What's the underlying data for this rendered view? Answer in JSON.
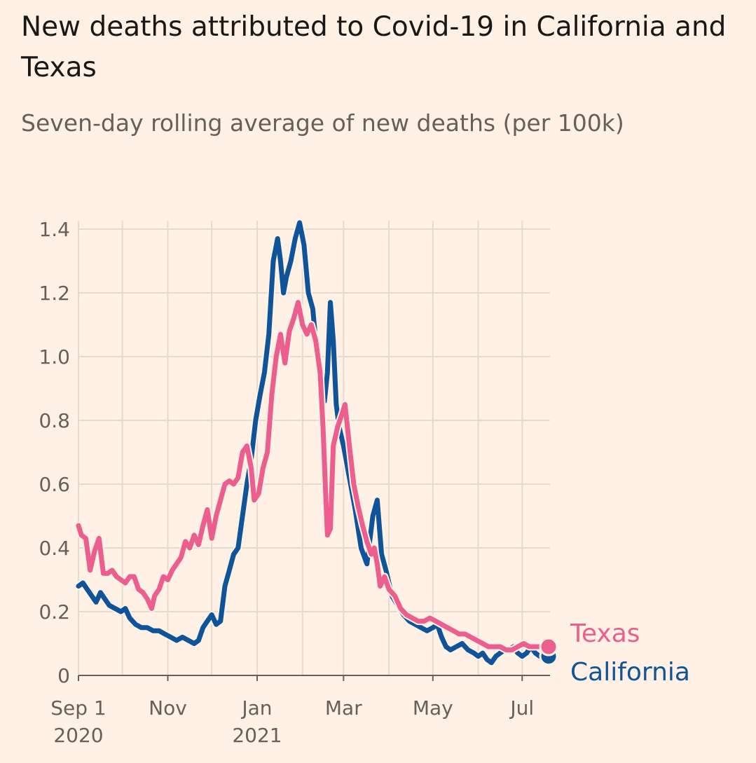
{
  "title": "New deaths attributed to Covid-19 in California and Texas",
  "subtitle": "Seven-day rolling average of new deaths (per 100k)",
  "colors": {
    "background": "#fff1e5",
    "texas": "#eb5e8d",
    "california": "#0f5499",
    "grid": "#e6d9ce",
    "axis": "#66605c"
  },
  "chart_data": {
    "type": "line",
    "title": "New deaths attributed to Covid-19 in California and Texas",
    "subtitle": "Seven-day rolling average of new deaths (per 100k)",
    "ylim": [
      0,
      1.4
    ],
    "yticks": [
      "0",
      "0.2",
      "0.4",
      "0.6",
      "0.8",
      "1.0",
      "1.2",
      "1.4"
    ],
    "ytick_values": [
      0,
      0.2,
      0.4,
      0.6,
      0.8,
      1.0,
      1.2,
      1.4
    ],
    "xlim": [
      "2020-09-01",
      "2021-07-20"
    ],
    "xticks": [
      {
        "date": "2020-09-01",
        "label": "Sep 1",
        "sublabel": "2020"
      },
      {
        "date": "2020-11-01",
        "label": "Nov",
        "sublabel": ""
      },
      {
        "date": "2021-01-01",
        "label": "Jan",
        "sublabel": "2021"
      },
      {
        "date": "2021-03-01",
        "label": "Mar",
        "sublabel": ""
      },
      {
        "date": "2021-05-01",
        "label": "May",
        "sublabel": ""
      },
      {
        "date": "2021-07-01",
        "label": "Jul",
        "sublabel": ""
      }
    ],
    "grid": true,
    "legend": "labels at line ends (right)",
    "series": [
      {
        "name": "California",
        "color": "#0f5499",
        "points": [
          [
            "2020-09-01",
            0.28
          ],
          [
            "2020-09-04",
            0.29
          ],
          [
            "2020-09-07",
            0.27
          ],
          [
            "2020-09-10",
            0.25
          ],
          [
            "2020-09-13",
            0.23
          ],
          [
            "2020-09-16",
            0.26
          ],
          [
            "2020-09-19",
            0.24
          ],
          [
            "2020-09-22",
            0.22
          ],
          [
            "2020-09-26",
            0.21
          ],
          [
            "2020-09-30",
            0.2
          ],
          [
            "2020-10-03",
            0.21
          ],
          [
            "2020-10-06",
            0.18
          ],
          [
            "2020-10-10",
            0.16
          ],
          [
            "2020-10-14",
            0.15
          ],
          [
            "2020-10-18",
            0.15
          ],
          [
            "2020-10-22",
            0.14
          ],
          [
            "2020-10-26",
            0.14
          ],
          [
            "2020-10-30",
            0.13
          ],
          [
            "2020-11-03",
            0.12
          ],
          [
            "2020-11-07",
            0.11
          ],
          [
            "2020-11-11",
            0.12
          ],
          [
            "2020-11-15",
            0.11
          ],
          [
            "2020-11-19",
            0.1
          ],
          [
            "2020-11-22",
            0.11
          ],
          [
            "2020-11-25",
            0.15
          ],
          [
            "2020-11-28",
            0.17
          ],
          [
            "2020-12-01",
            0.19
          ],
          [
            "2020-12-04",
            0.16
          ],
          [
            "2020-12-07",
            0.17
          ],
          [
            "2020-12-10",
            0.28
          ],
          [
            "2020-12-13",
            0.33
          ],
          [
            "2020-12-16",
            0.38
          ],
          [
            "2020-12-19",
            0.4
          ],
          [
            "2020-12-22",
            0.5
          ],
          [
            "2020-12-25",
            0.6
          ],
          [
            "2020-12-28",
            0.68
          ],
          [
            "2020-12-31",
            0.8
          ],
          [
            "2021-01-03",
            0.88
          ],
          [
            "2021-01-06",
            0.95
          ],
          [
            "2021-01-09",
            1.07
          ],
          [
            "2021-01-12",
            1.3
          ],
          [
            "2021-01-15",
            1.37
          ],
          [
            "2021-01-17",
            1.3
          ],
          [
            "2021-01-19",
            1.2
          ],
          [
            "2021-01-21",
            1.25
          ],
          [
            "2021-01-24",
            1.3
          ],
          [
            "2021-01-27",
            1.37
          ],
          [
            "2021-01-30",
            1.42
          ],
          [
            "2021-02-02",
            1.35
          ],
          [
            "2021-02-05",
            1.2
          ],
          [
            "2021-02-08",
            1.15
          ],
          [
            "2021-02-11",
            1.0
          ],
          [
            "2021-02-14",
            0.9
          ],
          [
            "2021-02-16",
            0.86
          ],
          [
            "2021-02-18",
            0.95
          ],
          [
            "2021-02-20",
            1.17
          ],
          [
            "2021-02-22",
            1.05
          ],
          [
            "2021-02-24",
            0.85
          ],
          [
            "2021-02-26",
            0.78
          ],
          [
            "2021-03-01",
            0.72
          ],
          [
            "2021-03-05",
            0.62
          ],
          [
            "2021-03-09",
            0.52
          ],
          [
            "2021-03-13",
            0.4
          ],
          [
            "2021-03-17",
            0.35
          ],
          [
            "2021-03-21",
            0.5
          ],
          [
            "2021-03-24",
            0.55
          ],
          [
            "2021-03-27",
            0.38
          ],
          [
            "2021-03-30",
            0.33
          ],
          [
            "2021-04-03",
            0.25
          ],
          [
            "2021-04-07",
            0.22
          ],
          [
            "2021-04-11",
            0.19
          ],
          [
            "2021-04-15",
            0.17
          ],
          [
            "2021-04-19",
            0.16
          ],
          [
            "2021-04-23",
            0.15
          ],
          [
            "2021-04-27",
            0.14
          ],
          [
            "2021-05-01",
            0.15
          ],
          [
            "2021-05-04",
            0.16
          ],
          [
            "2021-05-07",
            0.12
          ],
          [
            "2021-05-10",
            0.09
          ],
          [
            "2021-05-13",
            0.08
          ],
          [
            "2021-05-17",
            0.09
          ],
          [
            "2021-05-21",
            0.1
          ],
          [
            "2021-05-25",
            0.08
          ],
          [
            "2021-05-29",
            0.07
          ],
          [
            "2021-06-01",
            0.06
          ],
          [
            "2021-06-04",
            0.07
          ],
          [
            "2021-06-07",
            0.05
          ],
          [
            "2021-06-10",
            0.04
          ],
          [
            "2021-06-13",
            0.06
          ],
          [
            "2021-06-16",
            0.07
          ],
          [
            "2021-06-19",
            0.08
          ],
          [
            "2021-06-22",
            0.08
          ],
          [
            "2021-06-25",
            0.09
          ],
          [
            "2021-06-28",
            0.07
          ],
          [
            "2021-07-01",
            0.06
          ],
          [
            "2021-07-04",
            0.07
          ],
          [
            "2021-07-07",
            0.09
          ],
          [
            "2021-07-10",
            0.07
          ],
          [
            "2021-07-13",
            0.06
          ],
          [
            "2021-07-16",
            0.06
          ],
          [
            "2021-07-20",
            0.06
          ]
        ]
      },
      {
        "name": "Texas",
        "color": "#eb5e8d",
        "points": [
          [
            "2020-09-01",
            0.47
          ],
          [
            "2020-09-03",
            0.44
          ],
          [
            "2020-09-06",
            0.43
          ],
          [
            "2020-09-09",
            0.33
          ],
          [
            "2020-09-12",
            0.39
          ],
          [
            "2020-09-15",
            0.43
          ],
          [
            "2020-09-18",
            0.32
          ],
          [
            "2020-09-21",
            0.32
          ],
          [
            "2020-09-24",
            0.33
          ],
          [
            "2020-09-27",
            0.31
          ],
          [
            "2020-09-30",
            0.3
          ],
          [
            "2020-10-03",
            0.29
          ],
          [
            "2020-10-06",
            0.31
          ],
          [
            "2020-10-09",
            0.31
          ],
          [
            "2020-10-12",
            0.27
          ],
          [
            "2020-10-15",
            0.26
          ],
          [
            "2020-10-18",
            0.24
          ],
          [
            "2020-10-21",
            0.21
          ],
          [
            "2020-10-23",
            0.25
          ],
          [
            "2020-10-26",
            0.27
          ],
          [
            "2020-10-29",
            0.31
          ],
          [
            "2020-11-01",
            0.3
          ],
          [
            "2020-11-04",
            0.33
          ],
          [
            "2020-11-07",
            0.35
          ],
          [
            "2020-11-10",
            0.37
          ],
          [
            "2020-11-13",
            0.42
          ],
          [
            "2020-11-16",
            0.4
          ],
          [
            "2020-11-19",
            0.44
          ],
          [
            "2020-11-22",
            0.41
          ],
          [
            "2020-11-25",
            0.47
          ],
          [
            "2020-11-28",
            0.52
          ],
          [
            "2020-12-01",
            0.43
          ],
          [
            "2020-12-04",
            0.5
          ],
          [
            "2020-12-07",
            0.55
          ],
          [
            "2020-12-10",
            0.6
          ],
          [
            "2020-12-13",
            0.61
          ],
          [
            "2020-12-16",
            0.6
          ],
          [
            "2020-12-19",
            0.62
          ],
          [
            "2020-12-22",
            0.7
          ],
          [
            "2020-12-25",
            0.72
          ],
          [
            "2020-12-28",
            0.65
          ],
          [
            "2020-12-30",
            0.55
          ],
          [
            "2021-01-02",
            0.57
          ],
          [
            "2021-01-05",
            0.65
          ],
          [
            "2021-01-08",
            0.7
          ],
          [
            "2021-01-11",
            0.88
          ],
          [
            "2021-01-14",
            1.0
          ],
          [
            "2021-01-17",
            1.07
          ],
          [
            "2021-01-20",
            0.98
          ],
          [
            "2021-01-23",
            1.08
          ],
          [
            "2021-01-26",
            1.12
          ],
          [
            "2021-01-29",
            1.17
          ],
          [
            "2021-02-01",
            1.1
          ],
          [
            "2021-02-04",
            1.07
          ],
          [
            "2021-02-07",
            1.1
          ],
          [
            "2021-02-10",
            1.05
          ],
          [
            "2021-02-13",
            0.95
          ],
          [
            "2021-02-15",
            0.78
          ],
          [
            "2021-02-17",
            0.55
          ],
          [
            "2021-02-18",
            0.44
          ],
          [
            "2021-02-20",
            0.46
          ],
          [
            "2021-02-22",
            0.72
          ],
          [
            "2021-02-25",
            0.78
          ],
          [
            "2021-02-28",
            0.82
          ],
          [
            "2021-03-02",
            0.85
          ],
          [
            "2021-03-05",
            0.72
          ],
          [
            "2021-03-08",
            0.6
          ],
          [
            "2021-03-11",
            0.53
          ],
          [
            "2021-03-14",
            0.47
          ],
          [
            "2021-03-17",
            0.42
          ],
          [
            "2021-03-20",
            0.38
          ],
          [
            "2021-03-22",
            0.4
          ],
          [
            "2021-03-24",
            0.35
          ],
          [
            "2021-03-26",
            0.28
          ],
          [
            "2021-03-29",
            0.31
          ],
          [
            "2021-04-01",
            0.27
          ],
          [
            "2021-04-05",
            0.25
          ],
          [
            "2021-04-09",
            0.21
          ],
          [
            "2021-04-13",
            0.19
          ],
          [
            "2021-04-17",
            0.18
          ],
          [
            "2021-04-21",
            0.17
          ],
          [
            "2021-04-25",
            0.17
          ],
          [
            "2021-04-29",
            0.18
          ],
          [
            "2021-05-03",
            0.17
          ],
          [
            "2021-05-07",
            0.16
          ],
          [
            "2021-05-11",
            0.15
          ],
          [
            "2021-05-15",
            0.14
          ],
          [
            "2021-05-19",
            0.13
          ],
          [
            "2021-05-23",
            0.13
          ],
          [
            "2021-05-27",
            0.12
          ],
          [
            "2021-05-31",
            0.11
          ],
          [
            "2021-06-04",
            0.1
          ],
          [
            "2021-06-08",
            0.09
          ],
          [
            "2021-06-12",
            0.09
          ],
          [
            "2021-06-16",
            0.09
          ],
          [
            "2021-06-20",
            0.08
          ],
          [
            "2021-06-24",
            0.08
          ],
          [
            "2021-06-28",
            0.09
          ],
          [
            "2021-07-02",
            0.1
          ],
          [
            "2021-07-06",
            0.09
          ],
          [
            "2021-07-10",
            0.09
          ],
          [
            "2021-07-14",
            0.09
          ],
          [
            "2021-07-20",
            0.09
          ]
        ]
      }
    ]
  }
}
